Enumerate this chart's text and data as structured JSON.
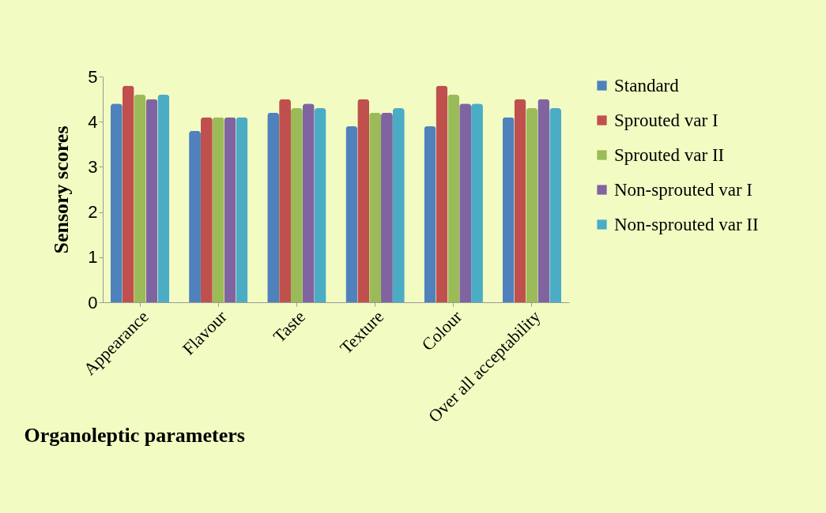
{
  "chart_data": {
    "type": "bar",
    "xlabel": "Organoleptic parameters",
    "ylabel": "Sensory scores",
    "categories": [
      "Appearance",
      "Flavour",
      "Taste",
      "Texture",
      "Colour",
      "Over all acceptability"
    ],
    "series": [
      {
        "name": "Standard",
        "color": "#4f81bd",
        "values": [
          4.4,
          3.8,
          4.2,
          3.9,
          3.9,
          4.1
        ]
      },
      {
        "name": "Sprouted var I",
        "color": "#c0504d",
        "values": [
          4.8,
          4.1,
          4.5,
          4.5,
          4.8,
          4.5
        ]
      },
      {
        "name": "Sprouted var II",
        "color": "#9bbb59",
        "values": [
          4.6,
          4.1,
          4.3,
          4.2,
          4.6,
          4.3
        ]
      },
      {
        "name": "Non-sprouted var I",
        "color": "#8064a2",
        "values": [
          4.5,
          4.1,
          4.4,
          4.2,
          4.4,
          4.5
        ]
      },
      {
        "name": "Non-sprouted var II",
        "color": "#4bacc6",
        "values": [
          4.6,
          4.1,
          4.3,
          4.3,
          4.4,
          4.3
        ]
      }
    ],
    "ylim": [
      0,
      5
    ],
    "yticks": [
      0,
      1,
      2,
      3,
      4,
      5
    ],
    "grid": false,
    "legend": "right"
  }
}
